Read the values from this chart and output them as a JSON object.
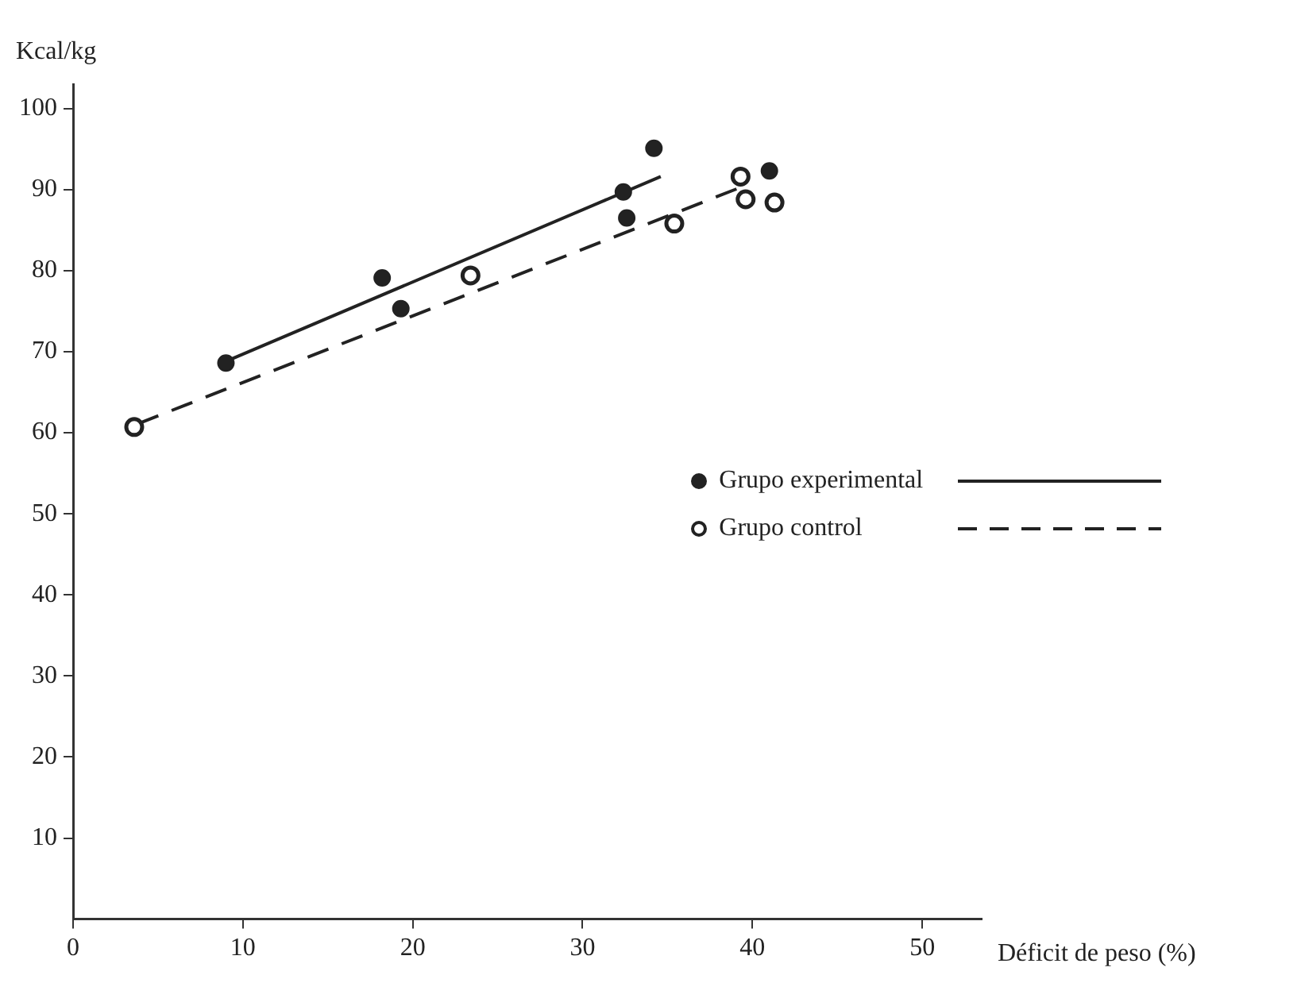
{
  "chart_data": {
    "type": "scatter",
    "xlabel": "Déficit de peso (%)",
    "ylabel": "Kcal/kg",
    "xlim": [
      0,
      53.5
    ],
    "xticks": [
      0,
      10,
      20,
      30,
      40,
      50
    ],
    "ylim": [
      0,
      103
    ],
    "yticks": [
      10,
      20,
      30,
      40,
      50,
      60,
      70,
      80,
      90,
      100
    ],
    "grid": false,
    "legend": "right",
    "series": [
      {
        "name": "Grupo experimental",
        "marker": "circle",
        "color": "#222222",
        "x": [
          9.0,
          18.2,
          19.3,
          32.4,
          32.6,
          34.2,
          41.0
        ],
        "values": [
          68.6,
          79.1,
          75.3,
          89.7,
          86.5,
          95.1,
          92.3
        ]
      },
      {
        "name": "Grupo control",
        "marker": "circle",
        "color": "#222222",
        "x": [
          3.6,
          23.4,
          35.4,
          39.3,
          39.6,
          41.3
        ],
        "values": [
          60.7,
          79.4,
          85.8,
          91.6,
          88.8,
          88.4
        ]
      },
      {
        "type": "line",
        "marker": "none",
        "color": "#222222",
        "line_style": "solid",
        "x": [
          9.0,
          34.6
        ],
        "values": [
          68.8,
          91.6
        ]
      },
      {
        "type": "line",
        "marker": "none",
        "color": "#222222",
        "line_style": "dashed",
        "x": [
          3.8,
          39.1
        ],
        "values": [
          61.1,
          90.1
        ]
      }
    ]
  }
}
